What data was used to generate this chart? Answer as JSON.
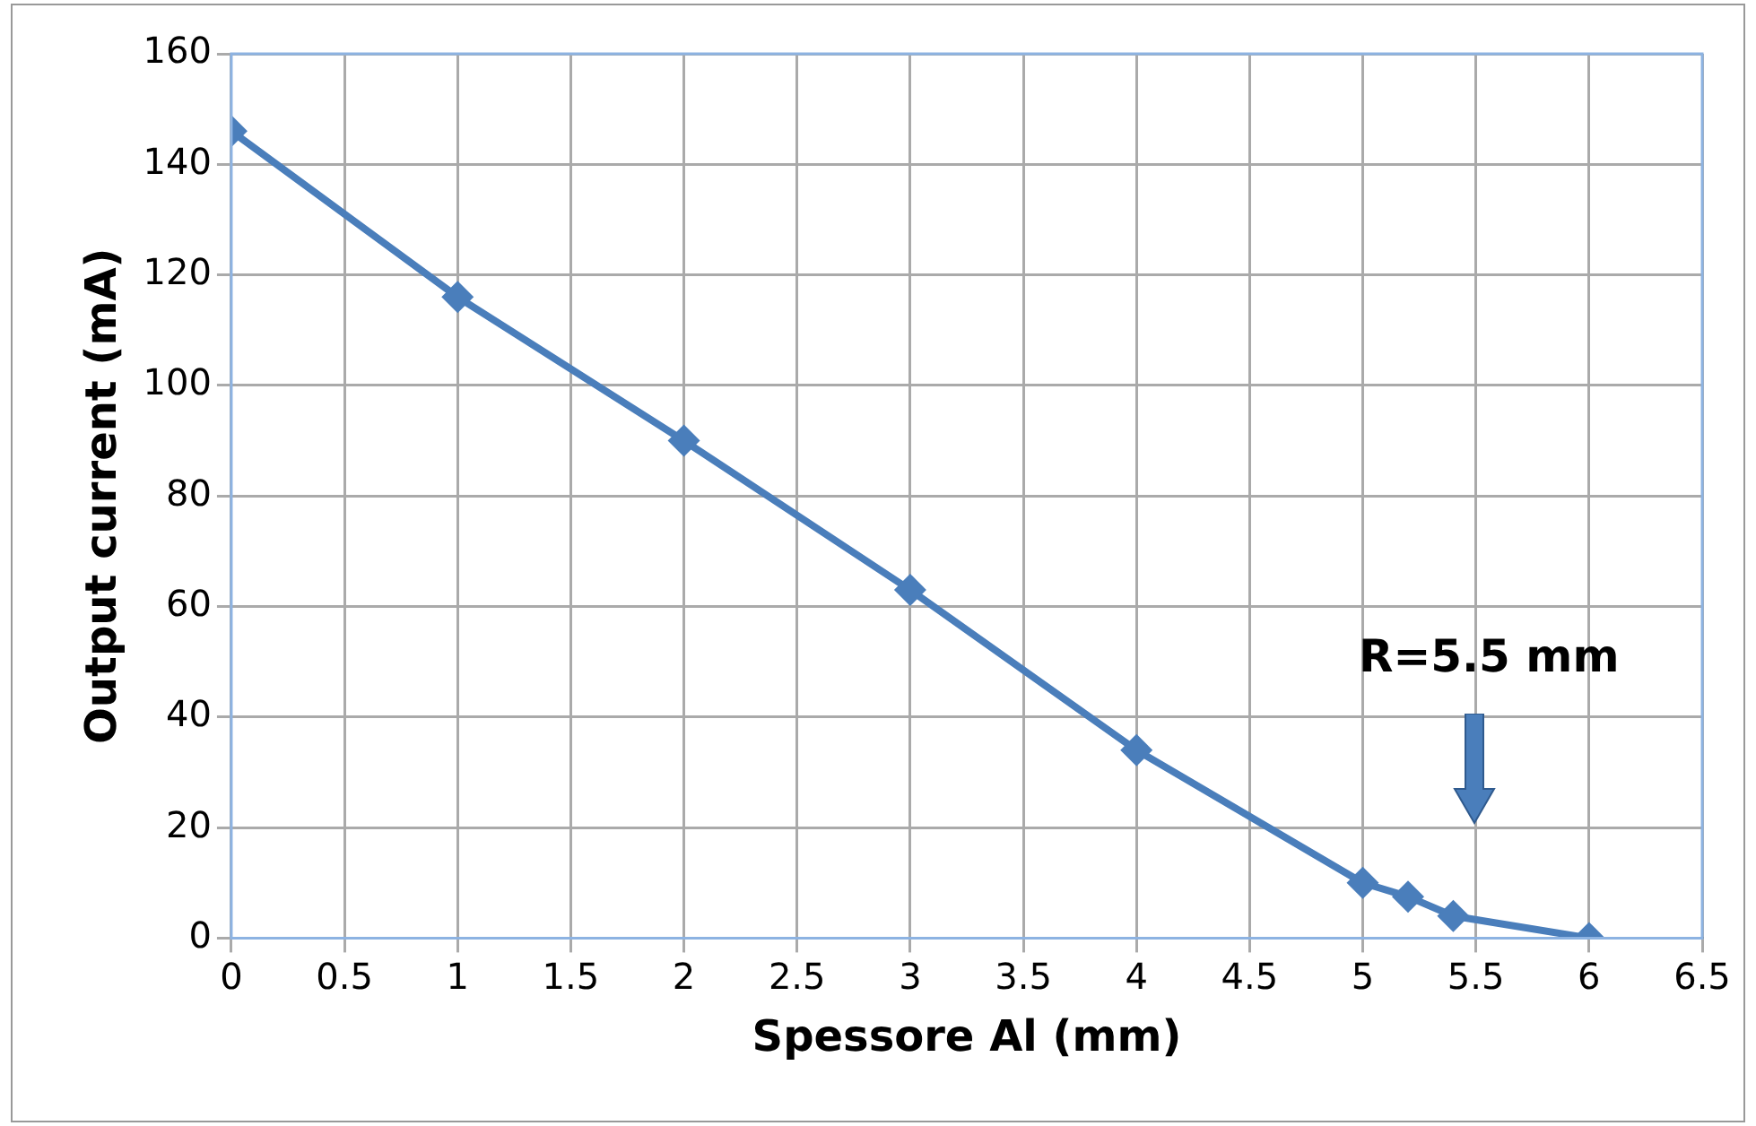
{
  "chart_data": {
    "type": "line",
    "xlabel": "Spessore Al (mm)",
    "ylabel": "Output current (mA)",
    "x": [
      0,
      1,
      2,
      3,
      4,
      5,
      5.2,
      5.4,
      6
    ],
    "series": [
      {
        "color": "#4a7ebb",
        "values": [
          146,
          116,
          90,
          63,
          34,
          10,
          7.5,
          4,
          0
        ]
      }
    ],
    "xlim": [
      0,
      6.5
    ],
    "xticks": [
      0,
      0.5,
      1,
      1.5,
      2,
      2.5,
      3,
      3.5,
      4,
      4.5,
      5,
      5.5,
      6,
      6.5
    ],
    "ylim": [
      0,
      160
    ],
    "yticks": [
      0,
      20,
      40,
      60,
      80,
      100,
      120,
      140,
      160
    ],
    "grid": true,
    "legend": false,
    "marker": "diamond",
    "line_style": "solid",
    "annotations": [
      "R=5.5 mm"
    ]
  }
}
